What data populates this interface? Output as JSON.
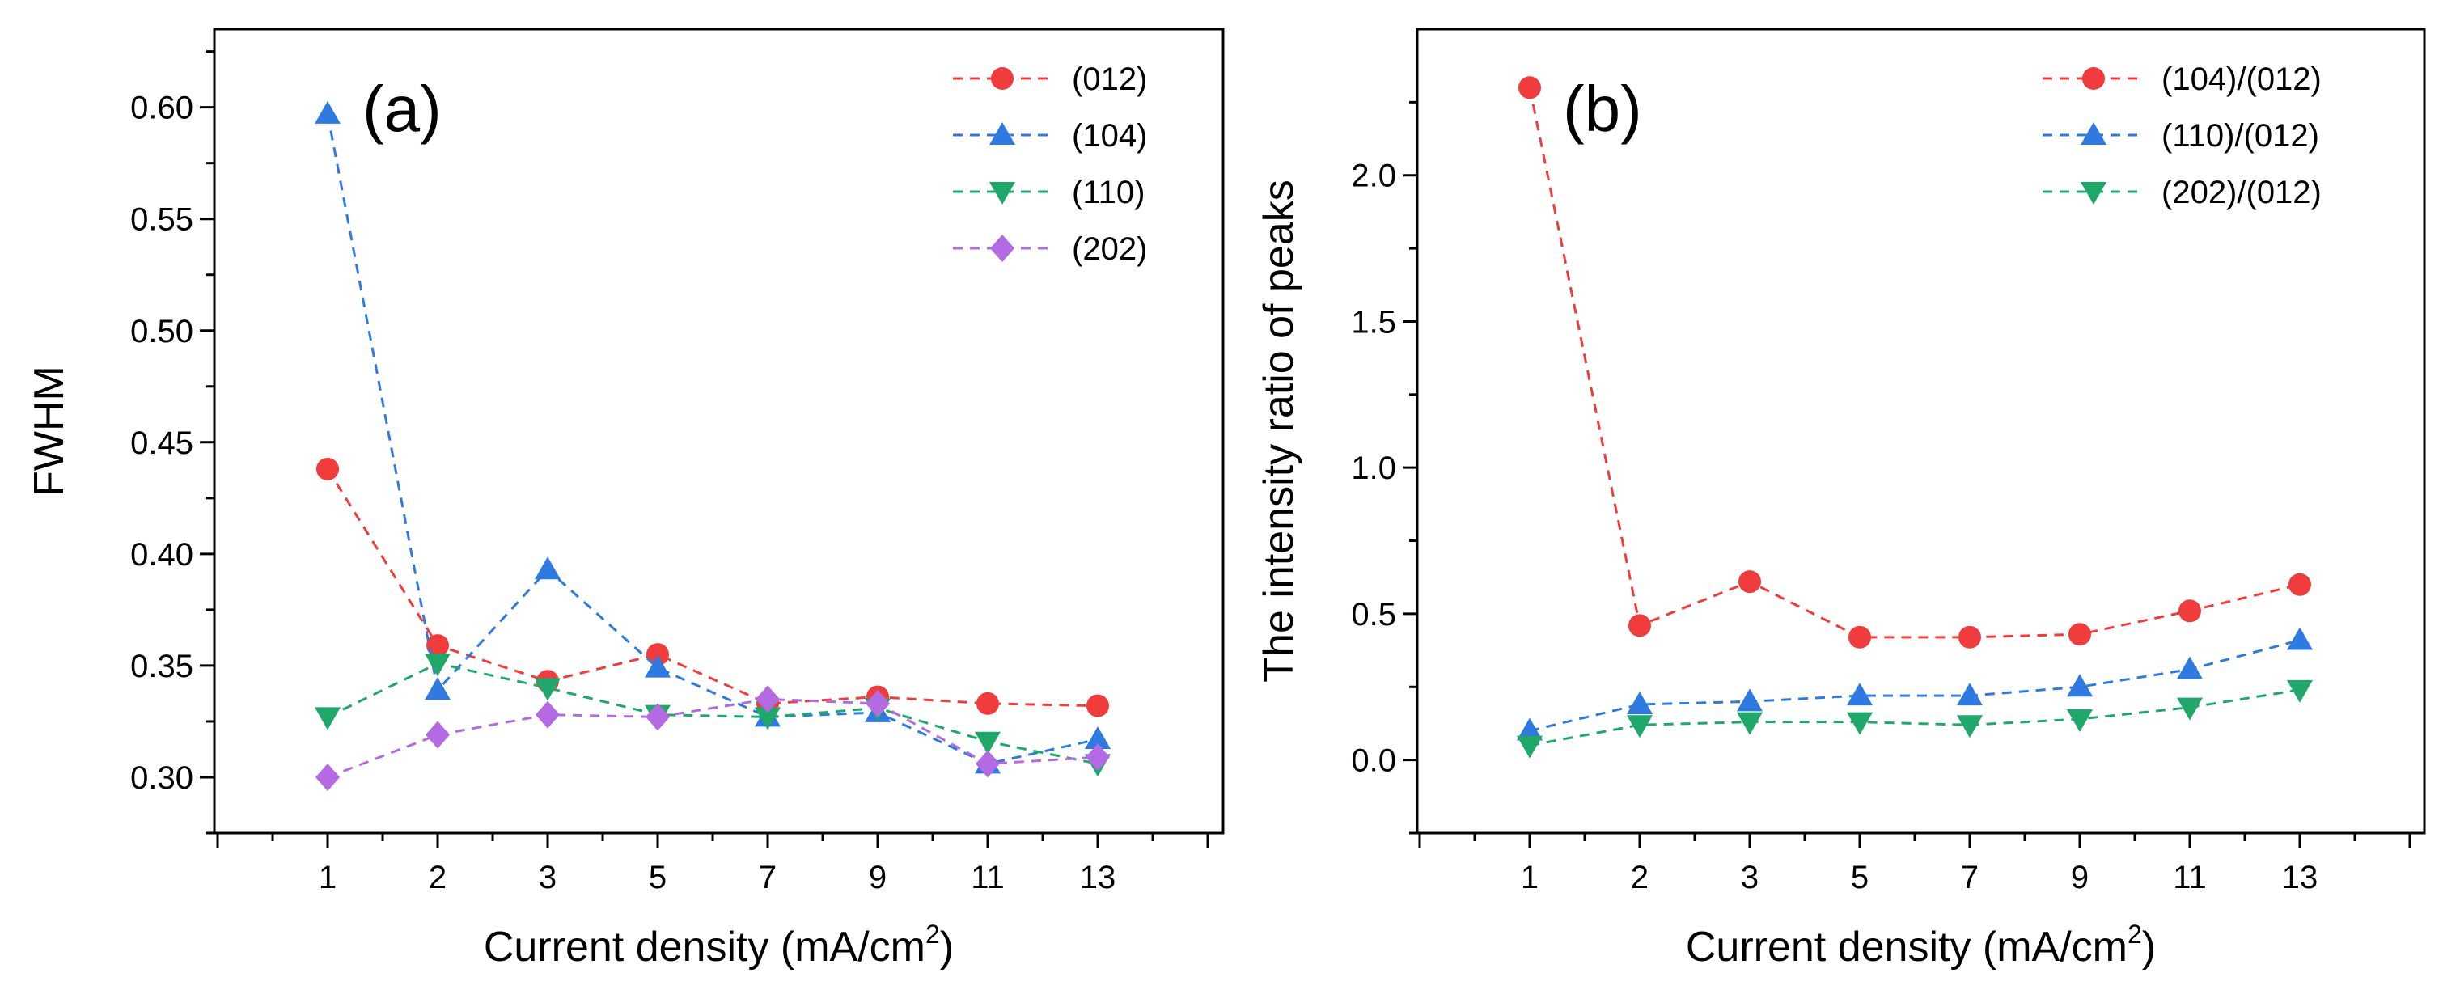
{
  "chart_data": [
    {
      "type": "line",
      "panel_label": "(a)",
      "xlabel_main": "Current density (mA/cm",
      "xlabel_sup": "2",
      "xlabel_end": ")",
      "ylabel": "FWHM",
      "categories": [
        "1",
        "2",
        "3",
        "5",
        "7",
        "9",
        "11",
        "13"
      ],
      "ylim": [
        0.275,
        0.635
      ],
      "yticks": [
        0.3,
        0.35,
        0.4,
        0.45,
        0.5,
        0.55,
        0.6
      ],
      "ytick_labels": [
        "0.30",
        "0.35",
        "0.40",
        "0.45",
        "0.50",
        "0.55",
        "0.60"
      ],
      "legend_position": "top-right",
      "series": [
        {
          "name": "(012)",
          "color": "#f03c3c",
          "marker": "circle",
          "values": [
            0.438,
            0.359,
            0.343,
            0.355,
            0.333,
            0.336,
            0.333,
            0.332
          ]
        },
        {
          "name": "(104)",
          "color": "#2f7ae0",
          "marker": "triangle-up",
          "values": [
            0.597,
            0.339,
            0.393,
            0.349,
            0.327,
            0.329,
            0.306,
            0.317
          ]
        },
        {
          "name": "(110)",
          "color": "#1fa86a",
          "marker": "triangle-down",
          "values": [
            0.327,
            0.351,
            0.34,
            0.328,
            0.327,
            0.331,
            0.316,
            0.306
          ]
        },
        {
          "name": "(202)",
          "color": "#b36ae2",
          "marker": "diamond",
          "values": [
            0.3,
            0.319,
            0.328,
            0.327,
            0.335,
            0.333,
            0.306,
            0.309
          ]
        }
      ]
    },
    {
      "type": "line",
      "panel_label": "(b)",
      "xlabel_main": "Current density (mA/cm",
      "xlabel_sup": "2",
      "xlabel_end": ")",
      "ylabel": "The intensity ratio of peaks",
      "categories": [
        "1",
        "2",
        "3",
        "5",
        "7",
        "9",
        "11",
        "13"
      ],
      "ylim": [
        -0.25,
        2.5
      ],
      "yticks": [
        0.0,
        0.5,
        1.0,
        1.5,
        2.0
      ],
      "ytick_labels": [
        "0.0",
        "0.5",
        "1.0",
        "1.5",
        "2.0"
      ],
      "legend_position": "top-right",
      "series": [
        {
          "name": "(104)/(012)",
          "color": "#f03c3c",
          "marker": "circle",
          "values": [
            2.3,
            0.46,
            0.61,
            0.42,
            0.42,
            0.43,
            0.51,
            0.6
          ]
        },
        {
          "name": "(110)/(012)",
          "color": "#2f7ae0",
          "marker": "triangle-up",
          "values": [
            0.1,
            0.19,
            0.2,
            0.22,
            0.22,
            0.25,
            0.31,
            0.41
          ]
        },
        {
          "name": "(202)/(012)",
          "color": "#1fa86a",
          "marker": "triangle-down",
          "values": [
            0.05,
            0.12,
            0.13,
            0.13,
            0.12,
            0.14,
            0.18,
            0.24
          ]
        }
      ]
    }
  ]
}
